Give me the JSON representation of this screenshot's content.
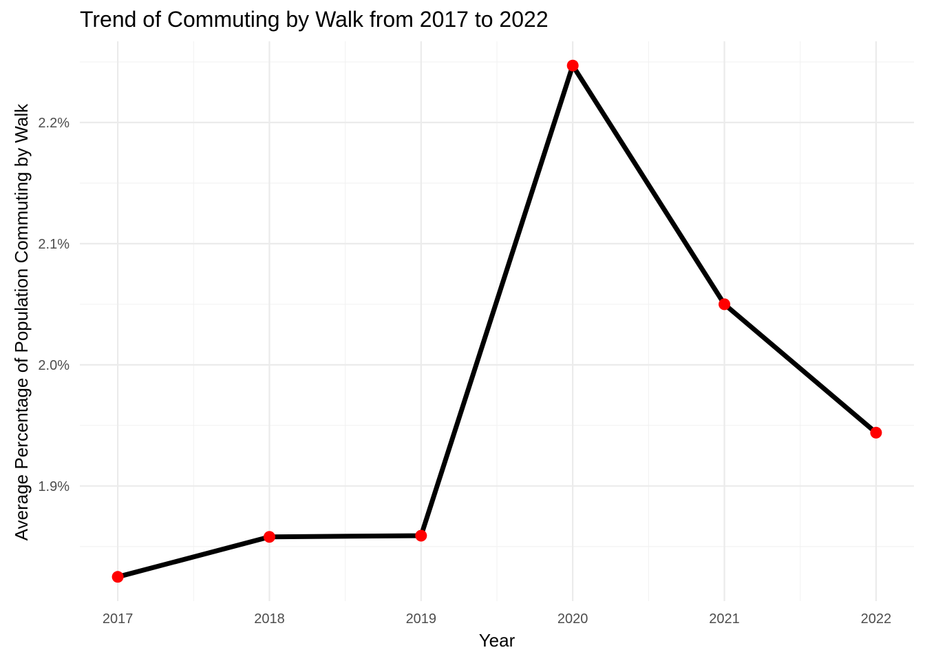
{
  "chart_data": {
    "type": "line",
    "title": "Trend of Commuting by Walk from 2017 to 2022",
    "xlabel": "Year",
    "ylabel": "Average Percentage of Population Commuting by Walk",
    "x": [
      2017,
      2018,
      2019,
      2020,
      2021,
      2022
    ],
    "series": [
      {
        "values": [
          1.825,
          1.858,
          1.859,
          2.247,
          2.05,
          1.944
        ]
      }
    ],
    "x_ticks": [
      "2017",
      "2018",
      "2019",
      "2020",
      "2021",
      "2022"
    ],
    "y_ticks": [
      1.9,
      2.0,
      2.1,
      2.2
    ],
    "y_tick_labels": [
      "1.9%",
      "2.0%",
      "2.1%",
      "2.2%"
    ],
    "ylim": [
      1.805,
      2.267
    ],
    "xlim": [
      2016.75,
      2022.25
    ],
    "grid": true,
    "line_color": "#000000",
    "point_color": "#ff0000"
  }
}
